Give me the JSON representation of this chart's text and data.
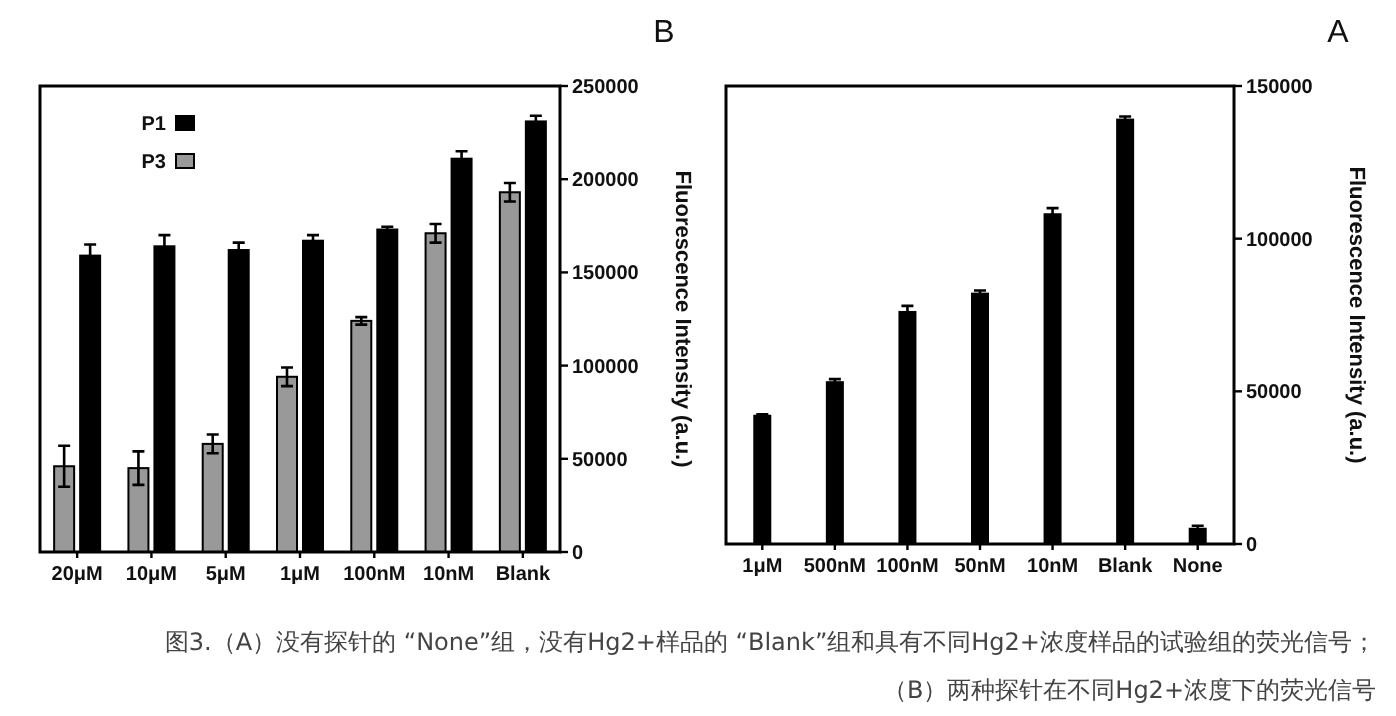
{
  "chart_data": [
    {
      "type": "bar",
      "title": "B",
      "ylabel": "Fluorescence Intensity (a.u.)",
      "categories": [
        "20μM",
        "10μM",
        "5μM",
        "1μM",
        "100nM",
        "10nM",
        "Blank"
      ],
      "series": [
        {
          "name": "P1",
          "color": "#000000",
          "values": [
            159000,
            164000,
            162000,
            167000,
            173000,
            211000,
            231000
          ],
          "errors": [
            6000,
            6000,
            4000,
            3000,
            1500,
            4000,
            3000
          ]
        },
        {
          "name": "P3",
          "color": "#999999",
          "values": [
            46000,
            45000,
            58000,
            94000,
            124000,
            171000,
            193000
          ],
          "errors": [
            11000,
            9000,
            5000,
            5000,
            2000,
            5000,
            5000
          ]
        }
      ],
      "ylim": [
        0,
        250000
      ],
      "yticks": [
        0,
        50000,
        100000,
        150000,
        200000,
        250000
      ],
      "legend": "top left"
    },
    {
      "type": "bar",
      "title": "A",
      "ylabel": "Fluorescence Intensity (a.u.)",
      "categories": [
        "1μM",
        "500nM",
        "100nM",
        "50nM",
        "10nM",
        "Blank",
        "None"
      ],
      "values": [
        42000,
        53000,
        76000,
        82000,
        108000,
        139000,
        5000
      ],
      "errors": [
        500,
        1000,
        2000,
        1000,
        2000,
        1000,
        1000
      ],
      "color": "#000000",
      "ylim": [
        0,
        150000
      ],
      "yticks": [
        0,
        50000,
        100000,
        150000
      ]
    },
    {
      "type": "other",
      "annotations": [
        "图3.（A）没有探针的 “None”组，没有Hg2+样品的 “Blank”组和具有不同Hg2+浓度样品的试验组的荧光信号；",
        "（B）两种探针在不同Hg2+浓度下的荧光信号"
      ]
    }
  ]
}
